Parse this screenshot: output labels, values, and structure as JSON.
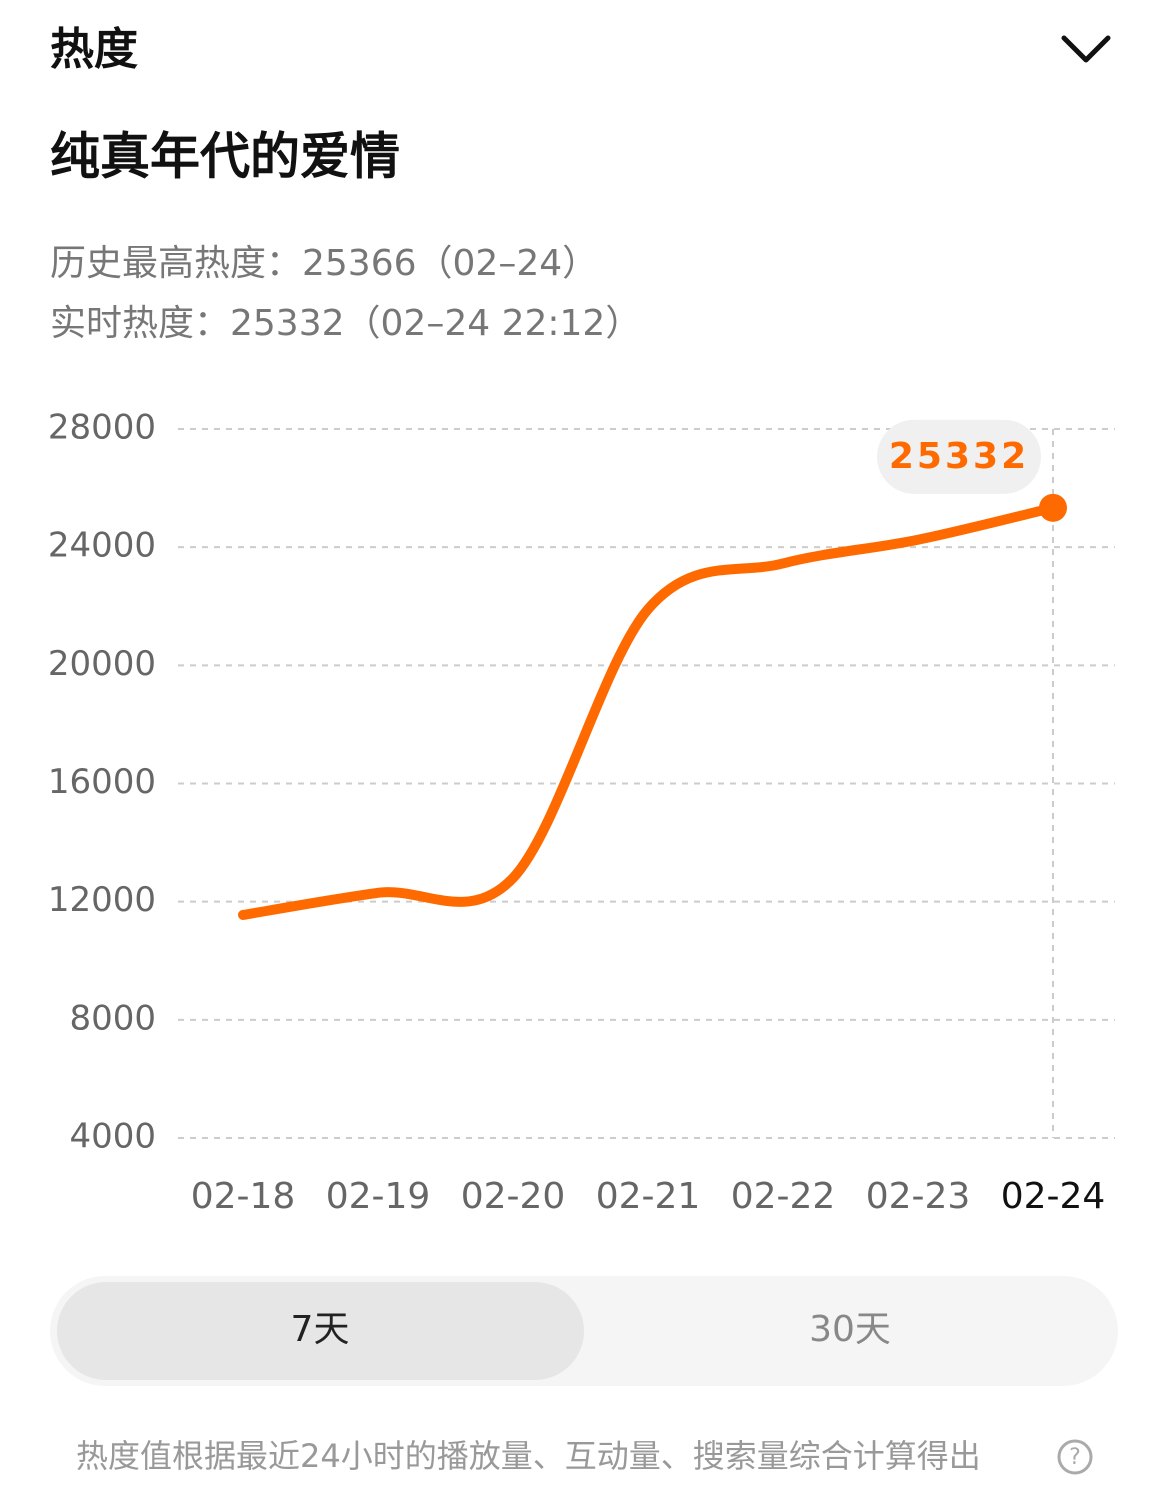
{
  "header": {
    "title": "热度"
  },
  "drama_title": "纯真年代的爱情",
  "stats": {
    "peak": "历史最高热度：25366（02–24）",
    "realtime": "实时热度：25332（02–24 22:12）"
  },
  "chart_data": {
    "type": "line",
    "categories": [
      "02-18",
      "02-19",
      "02-20",
      "02-21",
      "02-22",
      "02-23",
      "02-24"
    ],
    "values": [
      11550,
      12300,
      12800,
      21900,
      23450,
      24250,
      25332
    ],
    "color": "#ff6a00",
    "ylim": [
      4000,
      28000
    ],
    "yticks": [
      4000,
      8000,
      12000,
      16000,
      20000,
      24000,
      28000
    ],
    "grid": true
  },
  "tabs": [
    "7天",
    "30天"
  ],
  "footer": "热度值根据最近24小时的播放量、互动量、搜索量综合计算得出"
}
